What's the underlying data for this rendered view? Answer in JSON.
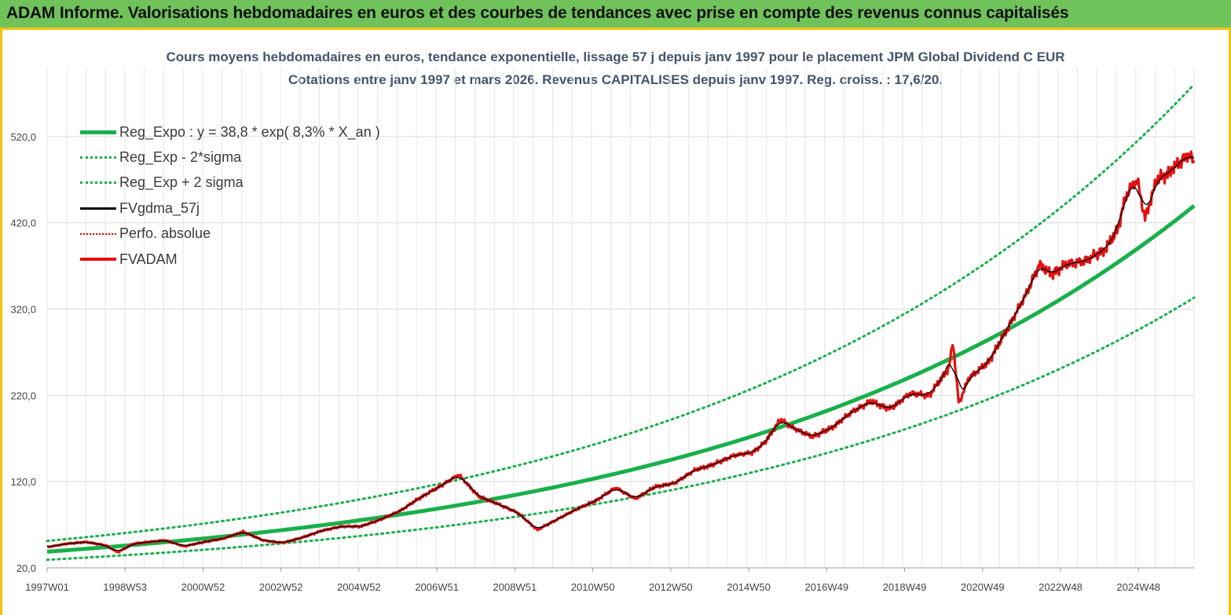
{
  "header": {
    "title": "ADAM Informe. Valorisations hebdomadaires en euros et des courbes de tendances avec prise en compte des revenus connus capitalisés"
  },
  "chart_data": {
    "type": "line",
    "title": "Cours moyens hebdomadaires en euros, tendance exponentielle, lissage 57 j depuis janv 1997  pour le placement JPM Global Dividend C EUR",
    "subtitle": "Cotations entre janv 1997 et mars 2026. Revenus CAPITALISES  depuis janv 1997. Reg. croiss. : 17,6/20.",
    "x_tick_labels": [
      "1997W01",
      "1998W53",
      "2000W52",
      "2002W52",
      "2004W52",
      "2006W51",
      "2008W51",
      "2010W50",
      "2012W50",
      "2014W50",
      "2016W49",
      "2018W49",
      "2020W49",
      "2022W48",
      "2024W48"
    ],
    "x_range": [
      1997.0,
      2026.25
    ],
    "y_tick_labels": [
      "20,0",
      "120,0",
      "220,0",
      "320,0",
      "420,0",
      "520,0"
    ],
    "y_ticks": [
      20,
      120,
      220,
      320,
      420,
      520
    ],
    "ylim": [
      20,
      600
    ],
    "grid": true,
    "legend_position": "top-left",
    "trend": {
      "a": 38.8,
      "b": 0.083,
      "sigma_factor": 1.32
    },
    "series": [
      {
        "name": "Reg_Expo : y = 38,8 * exp( 8,3% *  X_an )",
        "color": "#18b04a",
        "style": "solid-thick"
      },
      {
        "name": "Reg_Exp - 2*sigma",
        "color": "#18b04a",
        "style": "dotted"
      },
      {
        "name": "Reg_Exp + 2 sigma",
        "color": "#18b04a",
        "style": "dotted"
      },
      {
        "name": "FVgdma_57j",
        "color": "#000000",
        "style": "solid"
      },
      {
        "name": "Perfo. absolue",
        "color": "#e00000",
        "style": "dotted"
      },
      {
        "name": "FVADAM",
        "color": "#e41010",
        "style": "solid-thick"
      }
    ],
    "price_points": {
      "x": [
        1997.0,
        1997.5,
        1998.0,
        1998.5,
        1998.8,
        1999.2,
        1999.6,
        2000.0,
        2000.5,
        2001.0,
        2001.5,
        2002.0,
        2002.5,
        2003.0,
        2003.5,
        2004.0,
        2004.5,
        2005.0,
        2005.5,
        2006.0,
        2006.5,
        2007.0,
        2007.5,
        2008.0,
        2008.5,
        2009.0,
        2009.5,
        2010.0,
        2010.5,
        2011.0,
        2011.5,
        2012.0,
        2012.5,
        2013.0,
        2013.5,
        2014.0,
        2014.5,
        2015.0,
        2015.3,
        2015.7,
        2016.0,
        2016.5,
        2017.0,
        2017.5,
        2018.0,
        2018.5,
        2019.0,
        2019.5,
        2020.0,
        2020.1,
        2020.25,
        2020.5,
        2021.0,
        2021.5,
        2022.0,
        2022.3,
        2022.6,
        2023.0,
        2023.5,
        2024.0,
        2024.3,
        2024.5,
        2024.6,
        2024.8,
        2025.0,
        2025.3,
        2025.6,
        2025.9,
        2026.1,
        2026.25
      ],
      "y": [
        44,
        48,
        50,
        46,
        38,
        48,
        50,
        52,
        45,
        50,
        54,
        62,
        52,
        49,
        55,
        63,
        68,
        68,
        76,
        86,
        101,
        114,
        128,
        103,
        94,
        84,
        64,
        76,
        88,
        98,
        113,
        100,
        114,
        118,
        133,
        140,
        150,
        154,
        165,
        192,
        183,
        172,
        182,
        200,
        213,
        204,
        222,
        220,
        252,
        282,
        210,
        240,
        258,
        298,
        340,
        372,
        360,
        372,
        376,
        390,
        412,
        450,
        458,
        470,
        425,
        470,
        478,
        490,
        500,
        490
      ]
    }
  }
}
